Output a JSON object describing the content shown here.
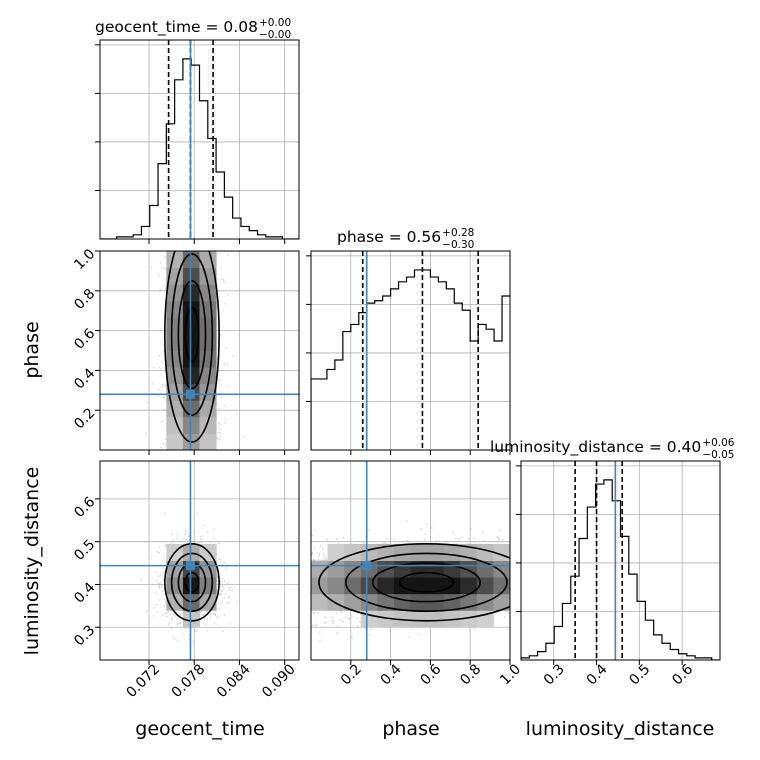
{
  "chart_data": {
    "type": "corner",
    "parameters": [
      "geocent_time",
      "phase",
      "luminosity_distance"
    ],
    "axis_labels": {
      "geocent_time": "geocent_time",
      "phase": "phase",
      "luminosity_distance": "luminosity_distance"
    },
    "ranges": {
      "geocent_time": [
        0.0655,
        0.0919
      ],
      "phase": [
        0.0,
        1.0
      ],
      "luminosity_distance": [
        0.2235,
        0.6885
      ]
    },
    "ticks": {
      "geocent_time": [
        0.072,
        0.078,
        0.084,
        0.09
      ],
      "phase": [
        0.2,
        0.4,
        0.6,
        0.8,
        1.0
      ],
      "luminosity_distance": [
        0.3,
        0.4,
        0.5,
        0.6
      ]
    },
    "tick_labels": {
      "geocent_time": [
        "0.072",
        "0.078",
        "0.084",
        "0.090"
      ],
      "phase": [
        "0.2",
        "0.4",
        "0.6",
        "0.8",
        "1.0"
      ],
      "luminosity_distance": [
        "0.3",
        "0.4",
        "0.5",
        "0.6"
      ]
    },
    "truths": {
      "geocent_time": 0.0775,
      "phase": 0.28,
      "luminosity_distance": 0.444
    },
    "quantiles": {
      "geocent_time": [
        0.0746,
        0.0775,
        0.0805
      ],
      "phase": [
        0.26,
        0.56,
        0.84
      ],
      "luminosity_distance": [
        0.35,
        0.4,
        0.46
      ]
    },
    "titles": [
      {
        "param": "geocent_time",
        "label": "geocent_time = 0.08",
        "plus": "+0.00",
        "minus": "−0.00"
      },
      {
        "param": "phase",
        "label": "phase = 0.56",
        "plus": "+0.28",
        "minus": "−0.30"
      },
      {
        "param": "luminosity_distance",
        "label": "luminosity_distance = 0.40",
        "plus": "+0.06",
        "minus": "−0.05"
      }
    ],
    "histograms": {
      "geocent_time": [
        0,
        0,
        1,
        1,
        2,
        6,
        16,
        36,
        55,
        76,
        86,
        83,
        66,
        48,
        32,
        20,
        10,
        6,
        4,
        2,
        1,
        1,
        0,
        0
      ],
      "phase": [
        30,
        30,
        34,
        38,
        50,
        53,
        58,
        62,
        63,
        65,
        68,
        71,
        73,
        76,
        76,
        73,
        71,
        68,
        62,
        59,
        46,
        53,
        51,
        46,
        65
      ],
      "luminosity_distance": [
        1,
        2,
        4,
        8,
        16,
        27,
        40,
        58,
        73,
        84,
        86,
        76,
        59,
        41,
        28,
        19,
        12,
        8,
        5,
        3,
        2,
        1,
        1,
        0
      ]
    },
    "hist_ymax": {
      "geocent_time": 95,
      "phase": 84,
      "luminosity_distance": 95
    },
    "truth_color": "#4682b4",
    "contour_color": "#000000",
    "sample_color": "#bdbdbd"
  }
}
